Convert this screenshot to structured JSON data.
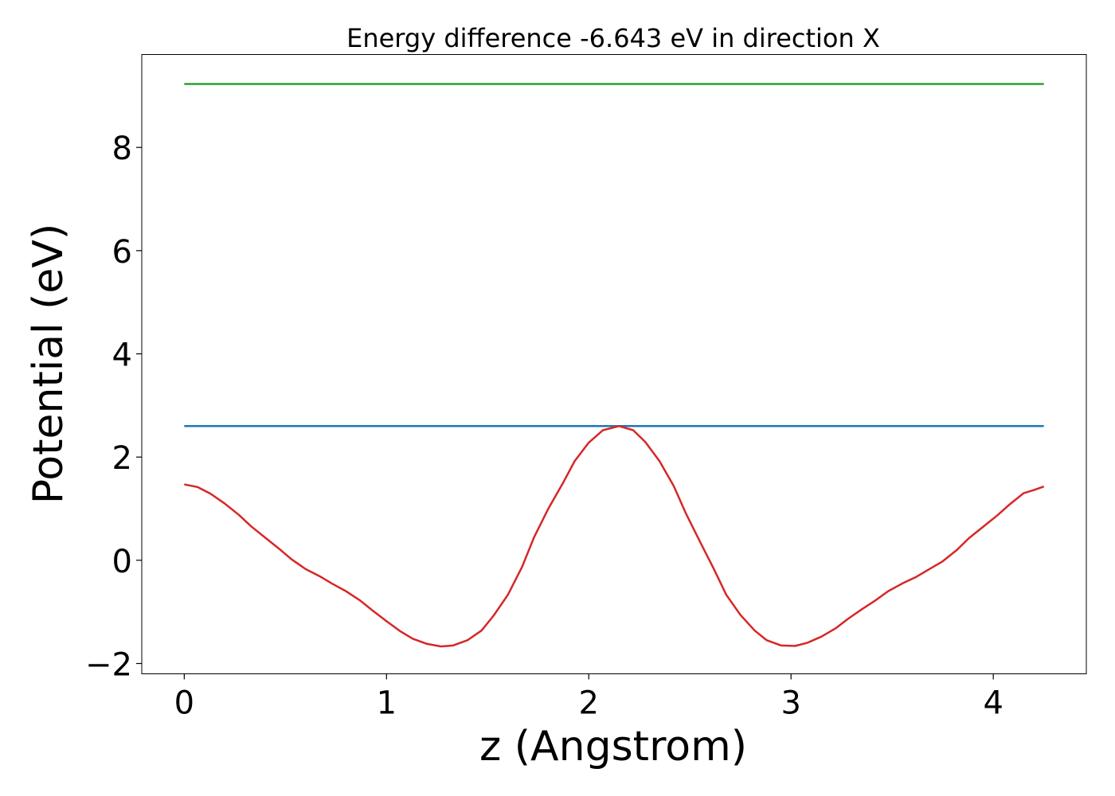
{
  "chart_data": {
    "type": "line",
    "title": "Energy difference -6.643 eV in direction X",
    "xlabel": "z (Angstrom)",
    "ylabel": "Potential (eV)",
    "xlim": [
      -0.21,
      4.46
    ],
    "ylim": [
      -2.2,
      9.8
    ],
    "xticks": [
      {
        "value": 0,
        "label": "0"
      },
      {
        "value": 1,
        "label": "1"
      },
      {
        "value": 2,
        "label": "2"
      },
      {
        "value": 3,
        "label": "3"
      },
      {
        "value": 4,
        "label": "4"
      }
    ],
    "yticks": [
      {
        "value": -2,
        "label": "−2"
      },
      {
        "value": 0,
        "label": "0"
      },
      {
        "value": 2,
        "label": "2"
      },
      {
        "value": 4,
        "label": "4"
      },
      {
        "value": 6,
        "label": "6"
      },
      {
        "value": 8,
        "label": "8"
      }
    ],
    "grid": false,
    "legend": "none",
    "series": [
      {
        "color": "#2ca02c",
        "x": [
          0,
          4.25
        ],
        "y": [
          9.23,
          9.23
        ]
      },
      {
        "color": "#1f77b4",
        "x": [
          0,
          4.25
        ],
        "y": [
          2.6,
          2.6
        ]
      },
      {
        "color": "#d62728",
        "x": [
          0,
          0.065,
          0.13,
          0.2,
          0.27,
          0.33,
          0.4,
          0.47,
          0.53,
          0.6,
          0.67,
          0.73,
          0.8,
          0.87,
          0.93,
          1.0,
          1.07,
          1.13,
          1.2,
          1.27,
          1.33,
          1.4,
          1.47,
          1.53,
          1.6,
          1.67,
          1.73,
          1.8,
          1.87,
          1.93,
          2.0,
          2.07,
          2.15,
          2.22,
          2.28,
          2.35,
          2.42,
          2.48,
          2.55,
          2.62,
          2.68,
          2.75,
          2.82,
          2.88,
          2.95,
          3.02,
          3.08,
          3.15,
          3.22,
          3.28,
          3.35,
          3.42,
          3.48,
          3.55,
          3.62,
          3.68,
          3.75,
          3.82,
          3.88,
          3.95,
          4.02,
          4.08,
          4.15,
          4.2,
          4.25
        ],
        "y": [
          1.47,
          1.42,
          1.29,
          1.1,
          0.88,
          0.66,
          0.44,
          0.22,
          0.02,
          -0.17,
          -0.31,
          -0.45,
          -0.6,
          -0.78,
          -0.97,
          -1.18,
          -1.38,
          -1.52,
          -1.62,
          -1.67,
          -1.65,
          -1.55,
          -1.36,
          -1.07,
          -0.67,
          -0.13,
          0.45,
          1.0,
          1.48,
          1.92,
          2.28,
          2.52,
          2.6,
          2.52,
          2.29,
          1.92,
          1.44,
          0.91,
          0.36,
          -0.18,
          -0.67,
          -1.06,
          -1.36,
          -1.55,
          -1.65,
          -1.66,
          -1.6,
          -1.48,
          -1.32,
          -1.14,
          -0.95,
          -0.77,
          -0.6,
          -0.45,
          -0.32,
          -0.18,
          -0.02,
          0.2,
          0.43,
          0.65,
          0.87,
          1.08,
          1.3,
          1.36,
          1.43
        ]
      }
    ]
  }
}
